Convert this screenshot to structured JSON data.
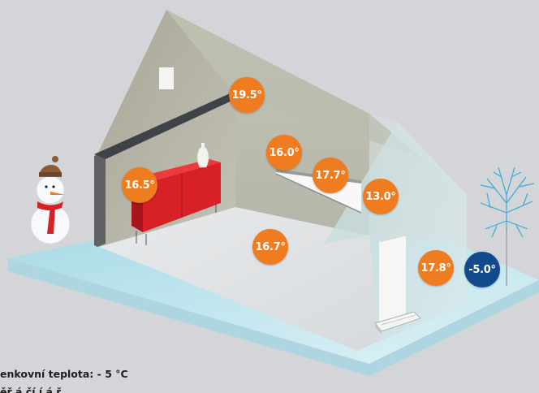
{
  "colors": {
    "background": "#d3d5d8",
    "warm_badge": "#ef7c1f",
    "cold_badge": "#134a8c",
    "furniture": "#d82027",
    "ice": "#bfe3ec"
  },
  "temperatures": {
    "attic": "19.5°",
    "left_wall": "16.5°",
    "window_left": "16.0°",
    "window_center": "17.7°",
    "sloped_roof": "13.0°",
    "floor": "16.7°",
    "door": "17.8°",
    "outside": "-5.0°"
  },
  "caption": {
    "outdoor": "enkovní teplota: - 5 °C",
    "second_line": "ěř á  čí  í á ř"
  },
  "icons": [
    "snowman-icon",
    "frost-tree-icon",
    "vase-icon",
    "radiator-icon"
  ]
}
